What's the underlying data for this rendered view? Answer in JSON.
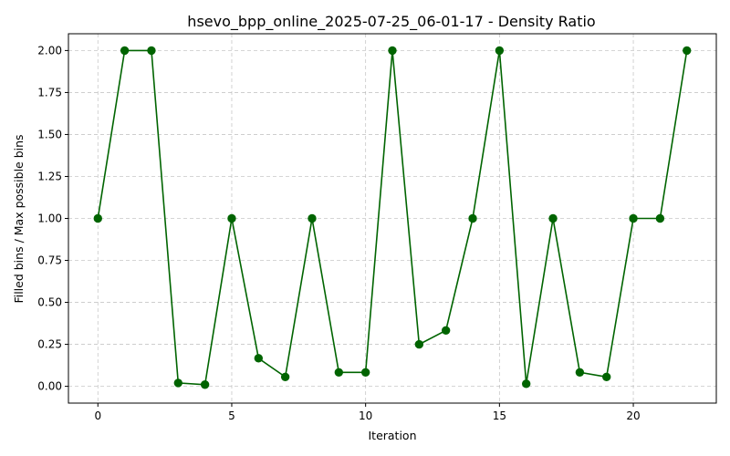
{
  "chart_data": {
    "type": "line",
    "title": "hsevo_bpp_online_2025-07-25_06-01-17 - Density Ratio",
    "xlabel": "Iteration",
    "ylabel": "Filled bins / Max possible bins",
    "xlim": [
      -1.1,
      23.1
    ],
    "ylim": [
      -0.1,
      2.1
    ],
    "xticks": [
      0,
      5,
      10,
      15,
      20
    ],
    "xtick_labels": [
      "0",
      "5",
      "10",
      "15",
      "20"
    ],
    "yticks": [
      0,
      0.25,
      0.5,
      0.75,
      1.0,
      1.25,
      1.5,
      1.75,
      2.0
    ],
    "ytick_labels": [
      "0.00",
      "0.25",
      "0.50",
      "0.75",
      "1.00",
      "1.25",
      "1.50",
      "1.75",
      "2.00"
    ],
    "grid": true,
    "series": [
      {
        "color": "#006400",
        "marker": "circle",
        "x": [
          0,
          1,
          2,
          3,
          4,
          5,
          6,
          7,
          8,
          9,
          10,
          11,
          12,
          13,
          14,
          15,
          16,
          17,
          18,
          19,
          20,
          21,
          22
        ],
        "y": [
          1.0,
          2.0,
          2.0,
          0.02,
          0.01,
          1.0,
          0.167,
          0.056,
          1.0,
          0.083,
          0.083,
          2.0,
          0.25,
          0.333,
          1.0,
          2.0,
          0.015,
          1.0,
          0.083,
          0.056,
          1.0,
          1.0,
          2.0
        ]
      }
    ]
  }
}
